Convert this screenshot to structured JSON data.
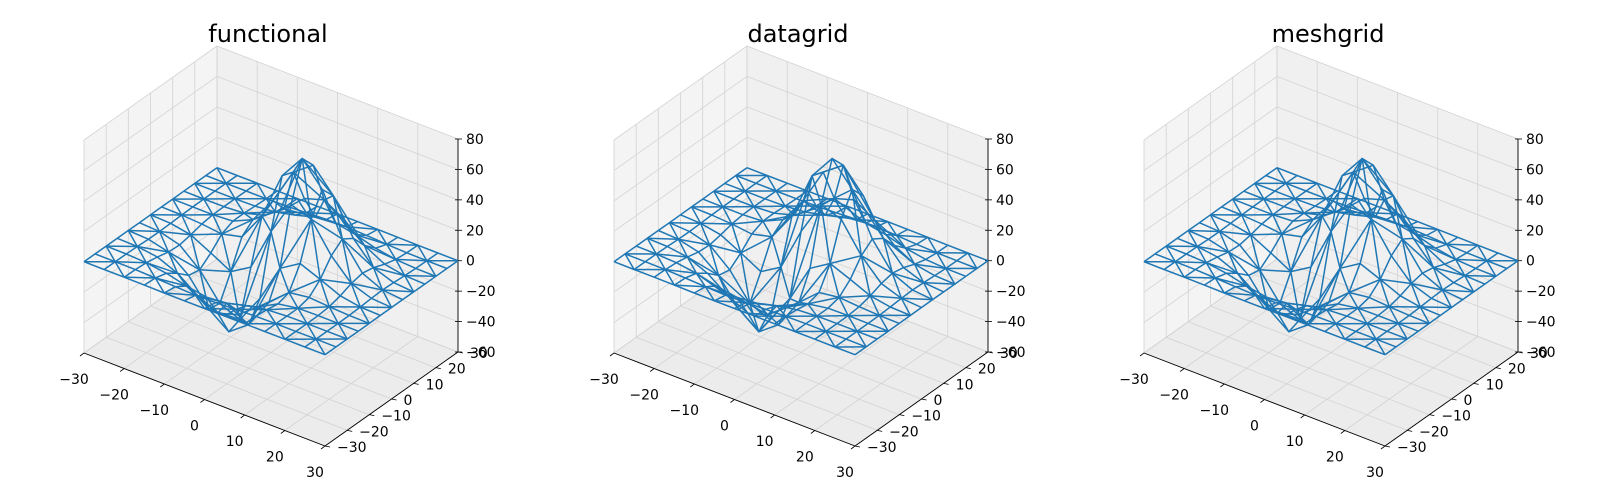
{
  "chart_data": [
    {
      "type": "wireframe",
      "title": "functional",
      "color": "#1f77b4",
      "xlim": [
        -30,
        30
      ],
      "ylim": [
        -30,
        30
      ],
      "zlim": [
        -60,
        80
      ],
      "xticks": [
        "−30",
        "−20",
        "−10",
        "0",
        "10",
        "20",
        "30"
      ],
      "yticks": [
        "−30",
        "−20",
        "−10",
        "0",
        "10",
        "20",
        "30"
      ],
      "zticks": [
        "−60",
        "−40",
        "−20",
        "0",
        "20",
        "40",
        "60",
        "80"
      ],
      "x": [
        -30,
        -25,
        -20,
        -15,
        -10,
        -5,
        0,
        5,
        10,
        15,
        20,
        25,
        30
      ],
      "y": [
        -30,
        -25,
        -20,
        -15,
        -10,
        -5,
        0,
        5,
        10,
        15,
        20,
        25,
        30
      ],
      "z_peak": 80,
      "z_trough": -60,
      "grid": true,
      "mesh": "triangulated"
    },
    {
      "type": "wireframe",
      "title": "datagrid",
      "color": "#1f77b4",
      "xlim": [
        -30,
        30
      ],
      "ylim": [
        -30,
        30
      ],
      "zlim": [
        -60,
        80
      ],
      "xticks": [
        "−30",
        "−20",
        "−10",
        "0",
        "10",
        "20",
        "30"
      ],
      "yticks": [
        "−30",
        "−20",
        "−10",
        "0",
        "10",
        "20",
        "30"
      ],
      "zticks": [
        "−60",
        "−40",
        "−20",
        "0",
        "20",
        "40",
        "60",
        "80"
      ],
      "x": [
        -30,
        -25,
        -20,
        -15,
        -10,
        -5,
        0,
        5,
        10,
        15,
        20,
        25,
        30
      ],
      "y": [
        -30,
        -25,
        -20,
        -15,
        -10,
        -5,
        0,
        5,
        10,
        15,
        20,
        25,
        30
      ],
      "z_peak": 80,
      "z_trough": -60,
      "grid": true,
      "mesh": "triangulated"
    },
    {
      "type": "wireframe",
      "title": "meshgrid",
      "color": "#1f77b4",
      "xlim": [
        -30,
        30
      ],
      "ylim": [
        -30,
        30
      ],
      "zlim": [
        -60,
        80
      ],
      "xticks": [
        "−30",
        "−20",
        "−10",
        "0",
        "10",
        "20",
        "30"
      ],
      "yticks": [
        "−30",
        "−20",
        "−10",
        "0",
        "10",
        "20",
        "30"
      ],
      "zticks": [
        "−60",
        "−40",
        "−20",
        "0",
        "20",
        "40",
        "60",
        "80"
      ],
      "x": [
        -30,
        -25,
        -20,
        -15,
        -10,
        -5,
        0,
        5,
        10,
        15,
        20,
        25,
        30
      ],
      "y": [
        -30,
        -25,
        -20,
        -15,
        -10,
        -5,
        0,
        5,
        10,
        15,
        20,
        25,
        30
      ],
      "z_peak": 80,
      "z_trough": -60,
      "grid": true,
      "mesh": "triangulated"
    }
  ]
}
